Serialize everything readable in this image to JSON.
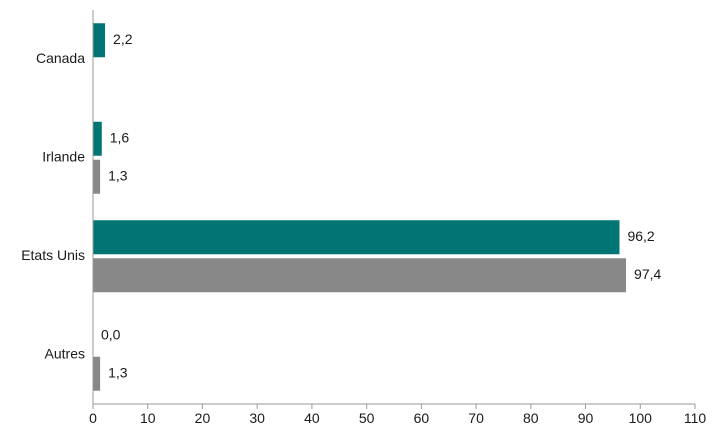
{
  "chart_data": {
    "type": "bar",
    "orientation": "horizontal",
    "categories": [
      "Canada",
      "Irlande",
      "Etats Unis",
      "Autres"
    ],
    "series": [
      {
        "color": "#007573",
        "values": [
          2.2,
          1.6,
          96.2,
          0.0
        ],
        "labels": [
          "2,2",
          "1,6",
          "96,2",
          "0,0"
        ]
      },
      {
        "color": "#888888",
        "values": [
          null,
          1.3,
          97.4,
          1.3
        ],
        "labels": [
          null,
          "1,3",
          "97,4",
          "1,3"
        ]
      }
    ],
    "xlim": [
      0,
      110
    ],
    "xticks": [
      0,
      10,
      20,
      30,
      40,
      50,
      60,
      70,
      80,
      90,
      100,
      110
    ],
    "grid": false,
    "legend": "none"
  }
}
